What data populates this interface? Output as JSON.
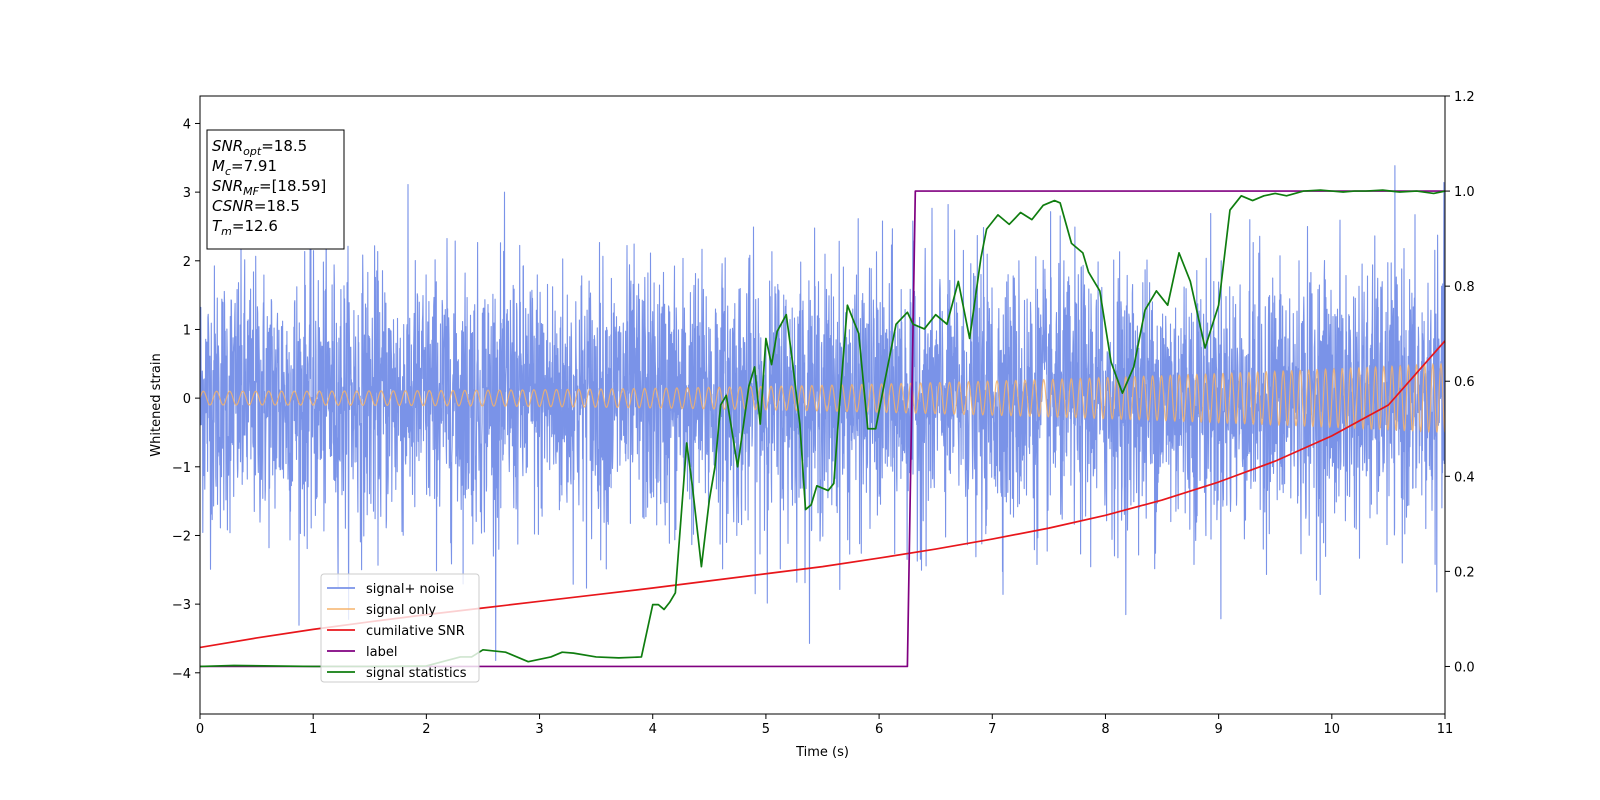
{
  "chart_data": {
    "type": "line",
    "xlabel": "Time (s)",
    "ylabel": "Whitened strain",
    "xlim": [
      0,
      11
    ],
    "ylim": [
      -4.6,
      4.4
    ],
    "y2lim": [
      -0.1,
      1.2
    ],
    "xticks": [
      0,
      1,
      2,
      3,
      4,
      5,
      6,
      7,
      8,
      9,
      10,
      11
    ],
    "yticks": [
      -4,
      -3,
      -2,
      -1,
      0,
      1,
      2,
      3,
      4
    ],
    "y2ticks": [
      "0.0",
      "0.2",
      "0.4",
      "0.6",
      "0.8",
      "1.0",
      "1.2"
    ],
    "grid": false,
    "legend_position": "lower-left",
    "info_box": {
      "position": "top-left",
      "lines": [
        {
          "base": "SNR",
          "sub": "opt",
          "value": "=18.5"
        },
        {
          "base": "M",
          "sub": "c",
          "value": "=7.91"
        },
        {
          "base": "SNR",
          "sub": "MF",
          "value": "=[18.59]"
        },
        {
          "base": "CSNR",
          "sub": "",
          "value": "=18.5"
        },
        {
          "base": "T",
          "sub": "m",
          "value": "=12.6"
        }
      ]
    },
    "series": [
      {
        "name": "signal+ noise",
        "color": "#7a93e8",
        "axis": "left",
        "kind": "noise",
        "description_values": {
          "typical_range": [
            -2.5,
            2.5
          ],
          "max": 4.0,
          "min": -4.15
        }
      },
      {
        "name": "signal only",
        "color": "#f5b26a",
        "axis": "left",
        "kind": "chirp",
        "amplitude_start": 0.1,
        "amplitude_end": 0.5
      },
      {
        "name": "cumilative SNR",
        "color": "#e8161b",
        "axis": "right",
        "x": [
          0,
          0.5,
          1,
          1.5,
          2,
          2.5,
          3,
          3.5,
          4,
          4.5,
          5,
          5.5,
          6,
          6.5,
          7,
          7.5,
          8,
          8.5,
          9,
          9.5,
          10,
          10.5,
          11
        ],
        "y": [
          0.04,
          0.06,
          0.078,
          0.094,
          0.109,
          0.123,
          0.137,
          0.151,
          0.165,
          0.18,
          0.195,
          0.21,
          0.228,
          0.247,
          0.268,
          0.291,
          0.318,
          0.35,
          0.388,
          0.432,
          0.485,
          0.55,
          0.685
        ]
      },
      {
        "name": "label",
        "color": "#800080",
        "axis": "right",
        "x": [
          0,
          6.25,
          6.32,
          11
        ],
        "y": [
          0.0,
          0.0,
          1.0,
          1.0
        ]
      },
      {
        "name": "signal statistics",
        "color": "#0f7d0f",
        "axis": "right",
        "x": [
          0,
          0.3,
          1,
          1.5,
          2,
          2.3,
          2.4,
          2.5,
          2.7,
          2.9,
          3.1,
          3.2,
          3.3,
          3.5,
          3.7,
          3.9,
          4.0,
          4.05,
          4.1,
          4.15,
          4.2,
          4.3,
          4.35,
          4.43,
          4.5,
          4.55,
          4.6,
          4.65,
          4.75,
          4.85,
          4.9,
          4.95,
          5.0,
          5.05,
          5.1,
          5.18,
          5.23,
          5.3,
          5.35,
          5.4,
          5.45,
          5.55,
          5.6,
          5.65,
          5.72,
          5.82,
          5.9,
          5.97,
          6.05,
          6.15,
          6.25,
          6.3,
          6.4,
          6.5,
          6.6,
          6.7,
          6.8,
          6.9,
          6.95,
          7.05,
          7.15,
          7.25,
          7.35,
          7.45,
          7.55,
          7.6,
          7.7,
          7.8,
          7.85,
          7.95,
          8.05,
          8.15,
          8.25,
          8.35,
          8.45,
          8.55,
          8.65,
          8.75,
          8.88,
          9.0,
          9.1,
          9.2,
          9.3,
          9.4,
          9.5,
          9.6,
          9.75,
          9.9,
          10.0,
          10.1,
          10.2,
          10.3,
          10.45,
          10.6,
          10.75,
          10.9,
          11.0
        ],
        "y": [
          0.0,
          0.002,
          0.0,
          0.0,
          0.001,
          0.02,
          0.02,
          0.035,
          0.03,
          0.01,
          0.02,
          0.03,
          0.028,
          0.02,
          0.018,
          0.02,
          0.13,
          0.13,
          0.12,
          0.135,
          0.155,
          0.47,
          0.38,
          0.21,
          0.35,
          0.42,
          0.55,
          0.57,
          0.42,
          0.59,
          0.63,
          0.51,
          0.69,
          0.635,
          0.705,
          0.74,
          0.65,
          0.51,
          0.33,
          0.34,
          0.38,
          0.37,
          0.385,
          0.55,
          0.76,
          0.7,
          0.5,
          0.5,
          0.6,
          0.72,
          0.745,
          0.72,
          0.71,
          0.74,
          0.72,
          0.81,
          0.69,
          0.86,
          0.92,
          0.95,
          0.93,
          0.955,
          0.94,
          0.97,
          0.98,
          0.975,
          0.89,
          0.87,
          0.83,
          0.79,
          0.64,
          0.575,
          0.63,
          0.75,
          0.79,
          0.76,
          0.87,
          0.81,
          0.67,
          0.76,
          0.96,
          0.99,
          0.98,
          0.99,
          0.995,
          0.99,
          1.0,
          1.002,
          1.0,
          0.998,
          1.0,
          1.0,
          1.002,
          0.998,
          1.0,
          0.995,
          1.0
        ]
      }
    ]
  }
}
